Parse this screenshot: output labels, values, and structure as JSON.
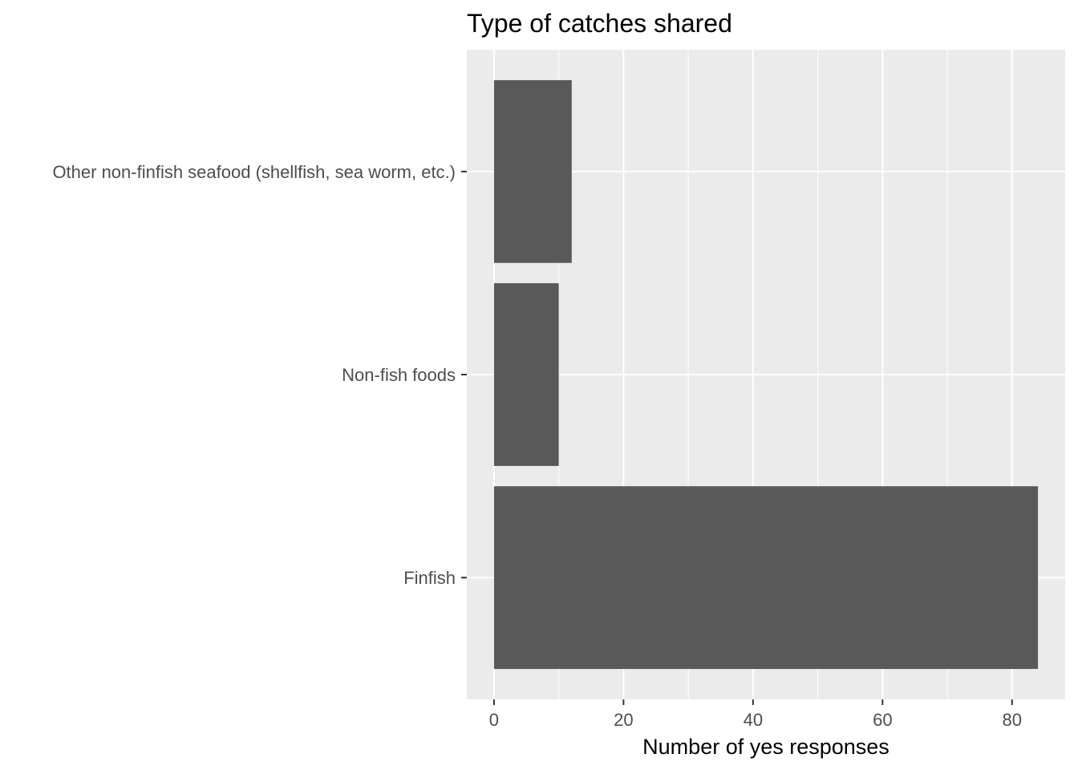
{
  "chart_data": {
    "type": "bar",
    "orientation": "horizontal",
    "title": "Type of catches shared",
    "xlabel": "Number of yes responses",
    "ylabel": "",
    "categories": [
      "Finfish",
      "Non-fish foods",
      "Other non-finfish seafood (shellfish, sea worm, etc.)"
    ],
    "values": [
      84,
      10,
      12
    ],
    "xlim": [
      -4.2,
      88.2
    ],
    "xticks": [
      0,
      20,
      40,
      60,
      80
    ],
    "grid": true,
    "legend": "none",
    "colors": {
      "bar": "#595959",
      "panel": "#ebebeb",
      "grid": "#ffffff",
      "tick_text": "#4d4d4d",
      "tick_mark": "#333333"
    }
  }
}
